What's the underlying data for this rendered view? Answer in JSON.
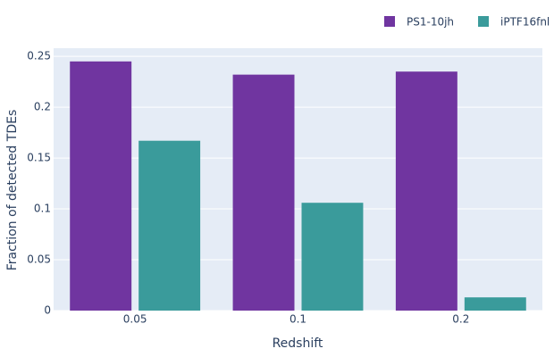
{
  "chart_data": {
    "type": "bar",
    "x_label": "Redshift",
    "y_label": "Fraction of detected TDEs",
    "categories": [
      "0.05",
      "0.1",
      "0.2"
    ],
    "series": [
      {
        "name": "PS1-10jh",
        "color": "#7035a0",
        "values": [
          0.245,
          0.232,
          0.235
        ]
      },
      {
        "name": "iPTF16fnl",
        "color": "#3a9b9b",
        "values": [
          0.167,
          0.106,
          0.013
        ]
      }
    ],
    "ylim": [
      0,
      0.258
    ],
    "yticks": [
      0,
      0.05,
      0.1,
      0.15,
      0.2,
      0.25
    ],
    "grid": true,
    "legend": "top-right"
  }
}
